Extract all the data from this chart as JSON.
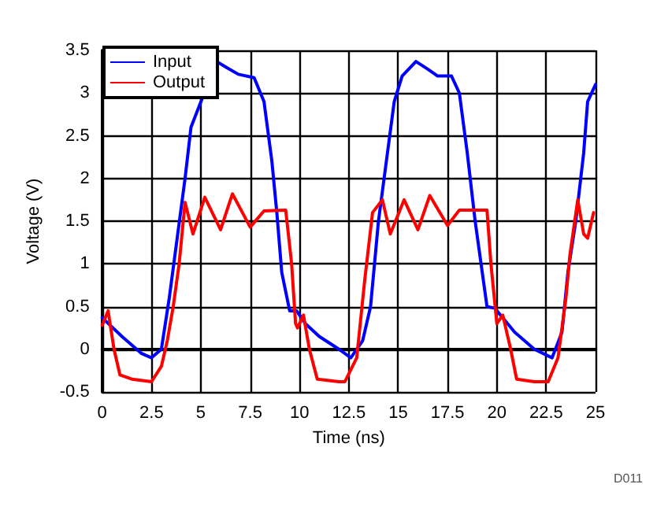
{
  "chart_data": {
    "type": "line",
    "xlabel": "Time (ns)",
    "ylabel": "Voltage (V)",
    "xlim": [
      0,
      25
    ],
    "ylim": [
      -0.5,
      3.5
    ],
    "xticks": [
      0,
      2.5,
      5,
      7.5,
      10,
      12.5,
      15,
      17.5,
      20,
      22.5,
      25
    ],
    "yticks": [
      -0.5,
      0,
      0.5,
      1,
      1.5,
      2,
      2.5,
      3,
      3.5
    ],
    "grid": true,
    "legend": "top left",
    "marker": "none",
    "line_style": "solid",
    "annotations": [
      "D011"
    ],
    "series": [
      {
        "name": "Input",
        "color": "#0000ff",
        "x": [
          0,
          1,
          2,
          2.5,
          3,
          3.4,
          3.8,
          4.2,
          4.5,
          5.8,
          6.3,
          6.9,
          7.7,
          8.2,
          8.6,
          8.85,
          9.1,
          9.5,
          9.85,
          10.3,
          11,
          12,
          12.6,
          13.2,
          13.6,
          14,
          14.4,
          14.8,
          15.2,
          15.9,
          16.5,
          17,
          17.7,
          18.1,
          18.5,
          18.9,
          19.2,
          19.5,
          19.9,
          20.9,
          21.9,
          22.8,
          23.3,
          23.6,
          24,
          24.4,
          24.6,
          25
        ],
        "values": [
          0.37,
          0.15,
          -0.05,
          -0.1,
          0,
          0.6,
          1.3,
          2,
          2.6,
          3.37,
          3.3,
          3.22,
          3.18,
          2.9,
          2.2,
          1.6,
          0.9,
          0.45,
          0.45,
          0.3,
          0.15,
          0,
          -0.1,
          0.1,
          0.5,
          1.5,
          2.2,
          2.9,
          3.2,
          3.37,
          3.28,
          3.2,
          3.2,
          3,
          2.3,
          1.5,
          1,
          0.5,
          0.48,
          0.2,
          0,
          -0.1,
          0.2,
          0.9,
          1.5,
          2.3,
          2.9,
          3.1
        ]
      },
      {
        "name": "Output",
        "color": "#ff0000",
        "x": [
          0,
          0.3,
          0.6,
          0.9,
          1.5,
          2.5,
          3,
          3.3,
          3.6,
          3.9,
          4.2,
          4.6,
          5.2,
          6,
          6.6,
          7.5,
          8.2,
          9.3,
          9.6,
          9.8,
          9.9,
          10.2,
          10.5,
          10.9,
          12,
          12.3,
          12.9,
          13.3,
          13.7,
          14.2,
          14.6,
          15.3,
          16,
          16.6,
          17.5,
          18.1,
          19.5,
          19.7,
          20,
          20.3,
          20.7,
          21,
          21.9,
          22.6,
          23.1,
          23.5,
          23.7,
          24.1,
          24.4,
          24.6,
          24.9
        ],
        "values": [
          0.28,
          0.45,
          0,
          -0.3,
          -0.35,
          -0.38,
          -0.2,
          0.1,
          0.5,
          1,
          1.72,
          1.35,
          1.78,
          1.4,
          1.82,
          1.43,
          1.62,
          1.63,
          1,
          0.3,
          0.25,
          0.4,
          0,
          -0.35,
          -0.38,
          -0.38,
          -0.1,
          0.8,
          1.6,
          1.75,
          1.35,
          1.75,
          1.4,
          1.8,
          1.45,
          1.63,
          1.63,
          1,
          0.3,
          0.4,
          0,
          -0.35,
          -0.38,
          -0.38,
          -0.1,
          0.6,
          1.1,
          1.75,
          1.35,
          1.3,
          1.6
        ]
      }
    ]
  }
}
